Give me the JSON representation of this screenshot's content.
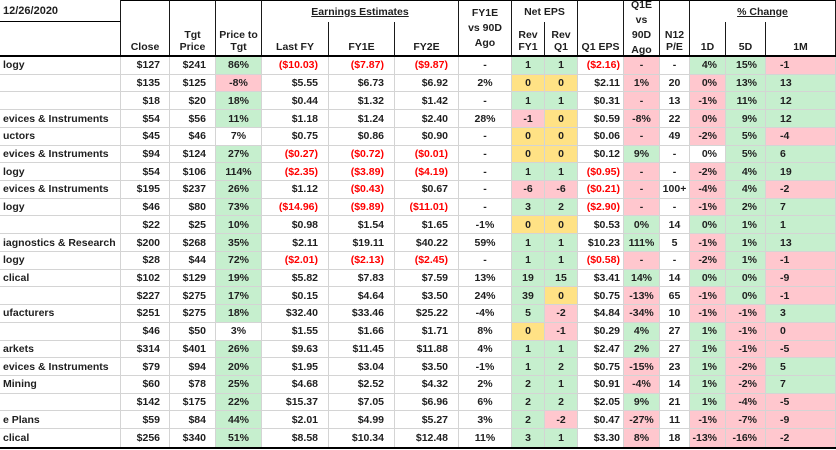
{
  "colors": {
    "positive_fill": "#C6EFCE",
    "negative_fill": "#FFC7CE",
    "neutral_fill": "#FFE285",
    "negative_text": "#FF0000",
    "grid_line": "#D4D4D4"
  },
  "header": {
    "date": "12/26/2020",
    "close": "Close",
    "tgt_price": [
      "Tgt",
      "Price"
    ],
    "price_to_tgt": [
      "Price to",
      "Tgt"
    ],
    "earnings_estimates": "Earnings Estimates",
    "last_fy": "Last FY",
    "fy1e": "FY1E",
    "fy2e": "FY2E",
    "fy1e_vs_90d": [
      "FY1E",
      "vs 90D",
      "Ago"
    ],
    "net_eps": "Net EPS",
    "rev_fy1": [
      "Rev",
      "FY1"
    ],
    "rev_q1": [
      "Rev",
      "Q1"
    ],
    "q1_eps": "Q1 EPS",
    "q1e_vs_90d": [
      "Q1E vs",
      "90D",
      "Ago"
    ],
    "n12_pe": [
      "N12",
      "P/E"
    ],
    "pct_change": "% Change",
    "d1": "1D",
    "d5": "5D",
    "m1": "1M"
  },
  "rows": [
    {
      "name": "logy",
      "cells": [
        [
          "$127"
        ],
        [
          "$241"
        ],
        [
          "86%",
          "g"
        ],
        [
          "($10.03)",
          "",
          "r"
        ],
        [
          "($7.87)",
          "",
          "r"
        ],
        [
          "($9.87)",
          "",
          "r"
        ],
        [
          "-"
        ],
        [
          "1",
          "g"
        ],
        [
          "1",
          "g"
        ],
        [
          "($2.16)",
          "",
          "r"
        ],
        [
          "-",
          "p"
        ],
        [
          "-"
        ],
        [
          "4%",
          "g"
        ],
        [
          "15%",
          "g"
        ],
        [
          "-1",
          "p"
        ]
      ]
    },
    {
      "name": "",
      "cells": [
        [
          "$135"
        ],
        [
          "$125"
        ],
        [
          "-8%",
          "p"
        ],
        [
          "$5.55"
        ],
        [
          "$6.73"
        ],
        [
          "$6.92"
        ],
        [
          "2%"
        ],
        [
          "0",
          "y"
        ],
        [
          "0",
          "y"
        ],
        [
          "$2.11"
        ],
        [
          "1%",
          "p"
        ],
        [
          "20"
        ],
        [
          "0%",
          "p"
        ],
        [
          "13%",
          "g"
        ],
        [
          "13",
          "g"
        ]
      ]
    },
    {
      "name": "",
      "cells": [
        [
          "$18"
        ],
        [
          "$20"
        ],
        [
          "18%",
          "g"
        ],
        [
          "$0.44"
        ],
        [
          "$1.32"
        ],
        [
          "$1.42"
        ],
        [
          "-"
        ],
        [
          "1",
          "g"
        ],
        [
          "1",
          "g"
        ],
        [
          "$0.31"
        ],
        [
          "-",
          "p"
        ],
        [
          "13"
        ],
        [
          "-1%",
          "p"
        ],
        [
          "11%",
          "g"
        ],
        [
          "12",
          "g"
        ]
      ]
    },
    {
      "name": "evices & Instruments",
      "cells": [
        [
          "$54"
        ],
        [
          "$56"
        ],
        [
          "11%",
          "g"
        ],
        [
          "$1.18"
        ],
        [
          "$1.24"
        ],
        [
          "$2.40"
        ],
        [
          "28%"
        ],
        [
          "-1",
          "p"
        ],
        [
          "0",
          "y"
        ],
        [
          "$0.59"
        ],
        [
          "-8%",
          "p"
        ],
        [
          "22"
        ],
        [
          "0%",
          "p"
        ],
        [
          "9%",
          "g"
        ],
        [
          "12",
          "g"
        ]
      ]
    },
    {
      "name": "uctors",
      "cells": [
        [
          "$45"
        ],
        [
          "$46"
        ],
        [
          "7%"
        ],
        [
          "$0.75"
        ],
        [
          "$0.86"
        ],
        [
          "$0.90"
        ],
        [
          "-"
        ],
        [
          "0",
          "y"
        ],
        [
          "0",
          "y"
        ],
        [
          "$0.06"
        ],
        [
          "-",
          "p"
        ],
        [
          "49"
        ],
        [
          "-2%",
          "p"
        ],
        [
          "5%",
          "g"
        ],
        [
          "-4",
          "p"
        ]
      ]
    },
    {
      "name": "evices & Instruments",
      "cells": [
        [
          "$94"
        ],
        [
          "$124"
        ],
        [
          "27%",
          "g"
        ],
        [
          "($0.27)",
          "",
          "r"
        ],
        [
          "($0.72)",
          "",
          "r"
        ],
        [
          "($0.01)",
          "",
          "r"
        ],
        [
          "-"
        ],
        [
          "0",
          "y"
        ],
        [
          "0",
          "y"
        ],
        [
          "$0.12"
        ],
        [
          "9%",
          "g"
        ],
        [
          "-"
        ],
        [
          "0%"
        ],
        [
          "5%",
          "g"
        ],
        [
          "6",
          "g"
        ]
      ]
    },
    {
      "name": "logy",
      "cells": [
        [
          "$54"
        ],
        [
          "$106"
        ],
        [
          "114%",
          "g"
        ],
        [
          "($2.35)",
          "",
          "r"
        ],
        [
          "($3.89)",
          "",
          "r"
        ],
        [
          "($4.19)",
          "",
          "r"
        ],
        [
          "-"
        ],
        [
          "1",
          "g"
        ],
        [
          "1",
          "g"
        ],
        [
          "($0.95)",
          "",
          "r"
        ],
        [
          "-",
          "p"
        ],
        [
          "-"
        ],
        [
          "-2%",
          "p"
        ],
        [
          "4%",
          "g"
        ],
        [
          "19",
          "g"
        ]
      ]
    },
    {
      "name": "evices & Instruments",
      "cells": [
        [
          "$195"
        ],
        [
          "$237"
        ],
        [
          "26%",
          "g"
        ],
        [
          "$1.12"
        ],
        [
          "($0.43)",
          "",
          "r"
        ],
        [
          "$0.67"
        ],
        [
          "-"
        ],
        [
          "-6",
          "p"
        ],
        [
          "-6",
          "p"
        ],
        [
          "($0.21)",
          "",
          "r"
        ],
        [
          "-",
          "p"
        ],
        [
          "100+"
        ],
        [
          "-4%",
          "p"
        ],
        [
          "4%",
          "g"
        ],
        [
          "-2",
          "p"
        ]
      ]
    },
    {
      "name": "logy",
      "cells": [
        [
          "$46"
        ],
        [
          "$80"
        ],
        [
          "73%",
          "g"
        ],
        [
          "($14.96)",
          "",
          "r"
        ],
        [
          "($9.89)",
          "",
          "r"
        ],
        [
          "($11.01)",
          "",
          "r"
        ],
        [
          "-"
        ],
        [
          "3",
          "g"
        ],
        [
          "2",
          "g"
        ],
        [
          "($2.90)",
          "",
          "r"
        ],
        [
          "-",
          "p"
        ],
        [
          "-"
        ],
        [
          "-1%",
          "p"
        ],
        [
          "2%",
          "g"
        ],
        [
          "7",
          "g"
        ]
      ]
    },
    {
      "name": "",
      "cells": [
        [
          "$22"
        ],
        [
          "$25"
        ],
        [
          "10%",
          "g"
        ],
        [
          "$0.98"
        ],
        [
          "$1.54"
        ],
        [
          "$1.65"
        ],
        [
          "-1%"
        ],
        [
          "0",
          "y"
        ],
        [
          "0",
          "y"
        ],
        [
          "$0.53"
        ],
        [
          "0%",
          "g"
        ],
        [
          "14"
        ],
        [
          "0%",
          "g"
        ],
        [
          "1%",
          "g"
        ],
        [
          "1",
          "g"
        ]
      ]
    },
    {
      "name": "iagnostics & Research",
      "cells": [
        [
          "$200"
        ],
        [
          "$268"
        ],
        [
          "35%",
          "g"
        ],
        [
          "$2.11"
        ],
        [
          "$19.11"
        ],
        [
          "$40.22"
        ],
        [
          "59%"
        ],
        [
          "1",
          "g"
        ],
        [
          "1",
          "g"
        ],
        [
          "$10.23"
        ],
        [
          "111%",
          "g"
        ],
        [
          "5"
        ],
        [
          "-1%",
          "p"
        ],
        [
          "1%",
          "g"
        ],
        [
          "13",
          "g"
        ]
      ]
    },
    {
      "name": "logy",
      "cells": [
        [
          "$28"
        ],
        [
          "$44"
        ],
        [
          "72%",
          "g"
        ],
        [
          "($2.01)",
          "",
          "r"
        ],
        [
          "($2.13)",
          "",
          "r"
        ],
        [
          "($2.45)",
          "",
          "r"
        ],
        [
          "-"
        ],
        [
          "1",
          "g"
        ],
        [
          "1",
          "g"
        ],
        [
          "($0.58)",
          "",
          "r"
        ],
        [
          "-",
          "p"
        ],
        [
          "-"
        ],
        [
          "-2%",
          "p"
        ],
        [
          "1%",
          "g"
        ],
        [
          "-1",
          "p"
        ]
      ]
    },
    {
      "name": "clical",
      "cells": [
        [
          "$102"
        ],
        [
          "$129"
        ],
        [
          "19%",
          "g"
        ],
        [
          "$5.82"
        ],
        [
          "$7.83"
        ],
        [
          "$7.59"
        ],
        [
          "13%"
        ],
        [
          "19",
          "g"
        ],
        [
          "15",
          "g"
        ],
        [
          "$3.41"
        ],
        [
          "14%",
          "g"
        ],
        [
          "14"
        ],
        [
          "0%",
          "g"
        ],
        [
          "0%",
          "g"
        ],
        [
          "-9",
          "p"
        ]
      ]
    },
    {
      "name": "",
      "cells": [
        [
          "$227"
        ],
        [
          "$275"
        ],
        [
          "17%",
          "g"
        ],
        [
          "$0.15"
        ],
        [
          "$4.64"
        ],
        [
          "$3.50"
        ],
        [
          "24%"
        ],
        [
          "39",
          "g"
        ],
        [
          "0",
          "y"
        ],
        [
          "$0.75"
        ],
        [
          "-13%",
          "p"
        ],
        [
          "65"
        ],
        [
          "-1%",
          "p"
        ],
        [
          "0%",
          "g"
        ],
        [
          "-1",
          "p"
        ]
      ]
    },
    {
      "name": "ufacturers",
      "cells": [
        [
          "$251"
        ],
        [
          "$275"
        ],
        [
          "18%",
          "g"
        ],
        [
          "$32.40"
        ],
        [
          "$33.46"
        ],
        [
          "$25.22"
        ],
        [
          "-4%"
        ],
        [
          "5",
          "g"
        ],
        [
          "-2",
          "p"
        ],
        [
          "$4.84"
        ],
        [
          "-34%",
          "p"
        ],
        [
          "10"
        ],
        [
          "-1%",
          "p"
        ],
        [
          "-1%",
          "p"
        ],
        [
          "3",
          "g"
        ]
      ]
    },
    {
      "name": "",
      "cells": [
        [
          "$46"
        ],
        [
          "$50"
        ],
        [
          "3%"
        ],
        [
          "$1.55"
        ],
        [
          "$1.66"
        ],
        [
          "$1.71"
        ],
        [
          "8%"
        ],
        [
          "0",
          "y"
        ],
        [
          "-1",
          "p"
        ],
        [
          "$0.29"
        ],
        [
          "4%",
          "g"
        ],
        [
          "27"
        ],
        [
          "1%",
          "g"
        ],
        [
          "-1%",
          "p"
        ],
        [
          "0",
          "p"
        ]
      ]
    },
    {
      "name": "arkets",
      "cells": [
        [
          "$314"
        ],
        [
          "$401"
        ],
        [
          "26%",
          "g"
        ],
        [
          "$9.63"
        ],
        [
          "$11.45"
        ],
        [
          "$11.88"
        ],
        [
          "4%"
        ],
        [
          "1",
          "g"
        ],
        [
          "1",
          "g"
        ],
        [
          "$2.47"
        ],
        [
          "2%",
          "g"
        ],
        [
          "27"
        ],
        [
          "1%",
          "g"
        ],
        [
          "-1%",
          "p"
        ],
        [
          "-5",
          "p"
        ]
      ]
    },
    {
      "name": "evices & Instruments",
      "cells": [
        [
          "$79"
        ],
        [
          "$94"
        ],
        [
          "20%",
          "g"
        ],
        [
          "$1.95"
        ],
        [
          "$3.04"
        ],
        [
          "$3.50"
        ],
        [
          "-1%"
        ],
        [
          "1",
          "g"
        ],
        [
          "2",
          "g"
        ],
        [
          "$0.75"
        ],
        [
          "-15%",
          "p"
        ],
        [
          "23"
        ],
        [
          "1%",
          "g"
        ],
        [
          "-2%",
          "p"
        ],
        [
          "5",
          "g"
        ]
      ]
    },
    {
      "name": "Mining",
      "cells": [
        [
          "$60"
        ],
        [
          "$78"
        ],
        [
          "25%",
          "g"
        ],
        [
          "$4.68"
        ],
        [
          "$2.52"
        ],
        [
          "$4.32"
        ],
        [
          "2%"
        ],
        [
          "2",
          "g"
        ],
        [
          "1",
          "g"
        ],
        [
          "$0.91"
        ],
        [
          "-4%",
          "p"
        ],
        [
          "14"
        ],
        [
          "1%",
          "g"
        ],
        [
          "-2%",
          "p"
        ],
        [
          "7",
          "g"
        ]
      ]
    },
    {
      "name": "",
      "cells": [
        [
          "$142"
        ],
        [
          "$175"
        ],
        [
          "22%",
          "g"
        ],
        [
          "$15.37"
        ],
        [
          "$7.05"
        ],
        [
          "$6.96"
        ],
        [
          "6%"
        ],
        [
          "2",
          "g"
        ],
        [
          "2",
          "g"
        ],
        [
          "$2.05"
        ],
        [
          "9%",
          "g"
        ],
        [
          "21"
        ],
        [
          "1%",
          "g"
        ],
        [
          "-4%",
          "p"
        ],
        [
          "-5",
          "p"
        ]
      ]
    },
    {
      "name": "e Plans",
      "cells": [
        [
          "$59"
        ],
        [
          "$84"
        ],
        [
          "44%",
          "g"
        ],
        [
          "$2.01"
        ],
        [
          "$4.99"
        ],
        [
          "$5.27"
        ],
        [
          "3%"
        ],
        [
          "2",
          "g"
        ],
        [
          "-2",
          "p"
        ],
        [
          "$0.47"
        ],
        [
          "-27%",
          "p"
        ],
        [
          "11"
        ],
        [
          "-1%",
          "p"
        ],
        [
          "-7%",
          "p"
        ],
        [
          "-9",
          "p"
        ]
      ]
    },
    {
      "name": "clical",
      "cells": [
        [
          "$256"
        ],
        [
          "$340"
        ],
        [
          "51%",
          "g"
        ],
        [
          "$8.58"
        ],
        [
          "$10.34"
        ],
        [
          "$12.48"
        ],
        [
          "11%"
        ],
        [
          "3",
          "g"
        ],
        [
          "1",
          "g"
        ],
        [
          "$3.30"
        ],
        [
          "8%",
          "p"
        ],
        [
          "18"
        ],
        [
          "-13%",
          "p"
        ],
        [
          "-16%",
          "p"
        ],
        [
          "-2",
          "p"
        ]
      ]
    }
  ]
}
